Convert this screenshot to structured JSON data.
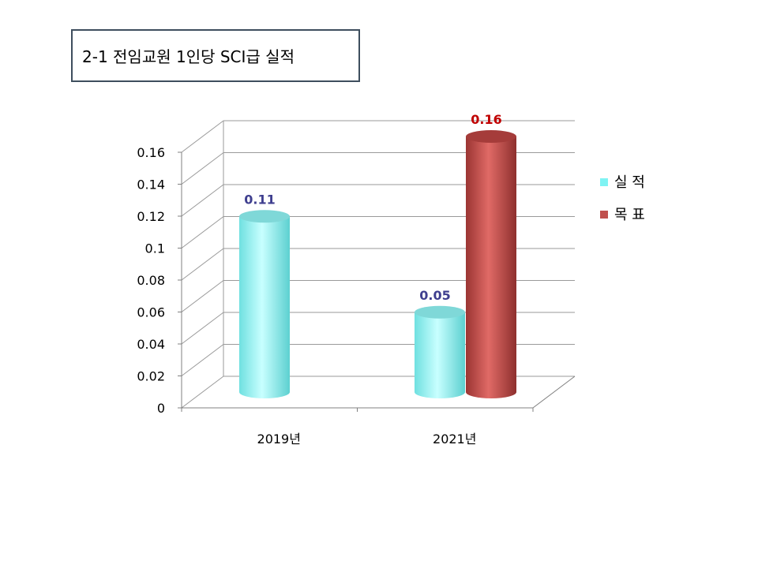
{
  "slide": {
    "title": "2-1 전임교원 1인당 SCI급 실적"
  },
  "chart_data": {
    "type": "bar",
    "style": "3d-cylinder",
    "categories": [
      "2019년",
      "2021년"
    ],
    "series": [
      {
        "name": "실 적",
        "color": "#8ff7f7",
        "values": [
          0.11,
          0.05
        ]
      },
      {
        "name": "목 표",
        "color": "#c0504d",
        "values": [
          null,
          0.16
        ]
      }
    ],
    "data_labels": [
      {
        "series": 0,
        "category": 0,
        "text": "0.11",
        "color": "#3f3f8f"
      },
      {
        "series": 0,
        "category": 1,
        "text": "0.05",
        "color": "#3f3f8f"
      },
      {
        "series": 1,
        "category": 1,
        "text": "0.16",
        "color": "#c00000"
      }
    ],
    "yticks": [
      "0",
      "0.02",
      "0.04",
      "0.06",
      "0.08",
      "0.1",
      "0.12",
      "0.14",
      "0.16"
    ],
    "ylim": [
      0,
      0.16
    ],
    "grid": true,
    "legend": "right"
  }
}
